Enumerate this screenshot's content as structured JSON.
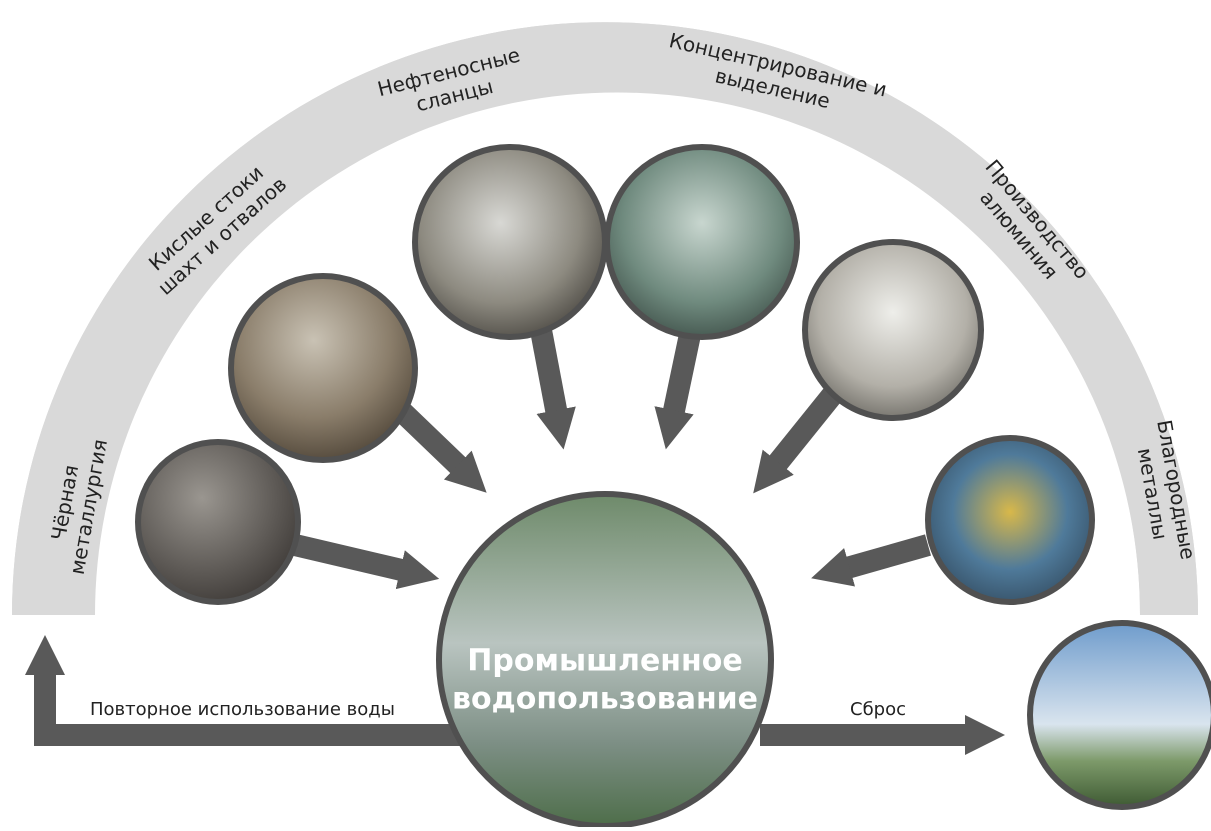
{
  "sources": [
    {
      "lines": [
        "Чёрная",
        "металлургия"
      ]
    },
    {
      "lines": [
        "Кислые стоки",
        "шахт и отвалов"
      ]
    },
    {
      "lines": [
        "Нефтеносные",
        "сланцы"
      ]
    },
    {
      "lines": [
        "Концентрирование и",
        "выделение"
      ]
    },
    {
      "lines": [
        "Производство",
        "алюминия"
      ]
    },
    {
      "lines": [
        "Благородные",
        "металлы"
      ]
    }
  ],
  "center": {
    "lines": [
      "Промышленное",
      "водопользование"
    ]
  },
  "reuse": "Повторное использование воды",
  "discharge": "Сброс"
}
